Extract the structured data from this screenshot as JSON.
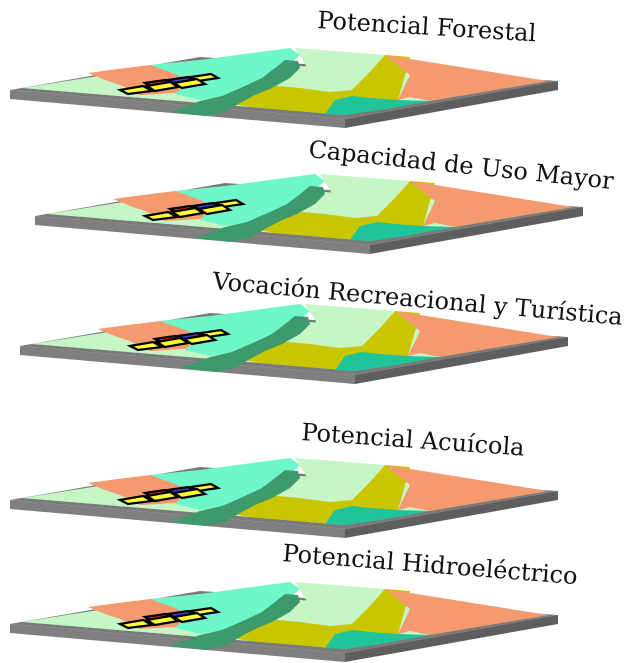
{
  "layers": [
    {
      "title": "Potencial Forestal"
    },
    {
      "title": "Capacidad de Uso Mayor"
    },
    {
      "title": "Vocación Recreacional y Turística"
    },
    {
      "title": "Potencial Acuícola"
    },
    {
      "title": "Potencial Hidroeléctrico"
    }
  ],
  "colors": {
    "light_green": "#c6f5c6",
    "aqua": "#6ff7cc",
    "dark_green": "#3e9a6c",
    "olive": "#c9c600",
    "salmon": "#f59a6e",
    "teal": "#20c49a",
    "grid_red": "#e52b2b",
    "grid_blue": "#3f3fd6",
    "grid_yellow": "#ffff33",
    "slab_side": "#7f7f7f",
    "slab_side_dark": "#5e5e5e"
  }
}
